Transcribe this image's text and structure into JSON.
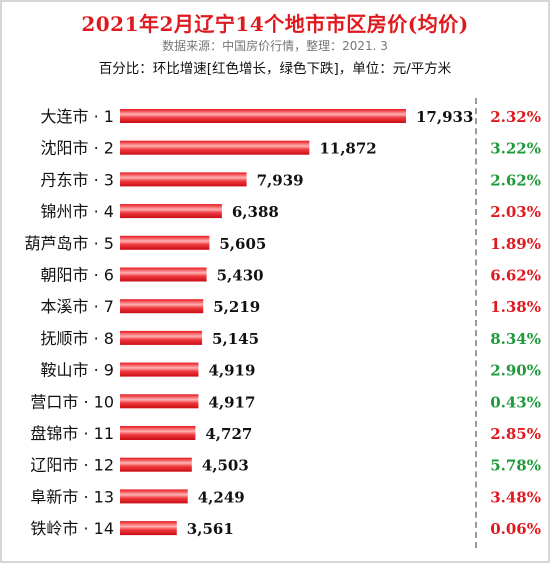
{
  "header": {
    "title": "2021年2月辽宁14个地市市区房价(均价)",
    "source": "数据来源：中国房价行情，整理：2021. 3",
    "note": "百分比：环比增速[红色增长，绿色下跌]，单位：元/平方米"
  },
  "colors": {
    "bar": "#e8141c",
    "bar_highlight": "#ffb3b3",
    "increase": "#e0191e",
    "decrease": "#1e9a3a"
  },
  "chart_data": {
    "type": "bar",
    "orientation": "horizontal",
    "categories": [
      "大连市 · 1",
      "沈阳市 · 2",
      "丹东市 · 3",
      "锦州市 · 4",
      "葫芦岛市 · 5",
      "朝阳市 · 6",
      "本溪市 · 7",
      "抚顺市 · 8",
      "鞍山市 · 9",
      "营口市 · 10",
      "盘锦市 · 11",
      "辽阳市 · 12",
      "阜新市 · 13",
      "铁岭市 · 14"
    ],
    "values": [
      17933,
      11872,
      7939,
      6388,
      5605,
      5430,
      5219,
      5145,
      4919,
      4917,
      4727,
      4503,
      4249,
      3561
    ],
    "value_labels": [
      "17,933",
      "11,872",
      "7,939",
      "6,388",
      "5,605",
      "5,430",
      "5,219",
      "5,145",
      "4,919",
      "4,917",
      "4,727",
      "4,503",
      "4,249",
      "3,561"
    ],
    "pct_labels": [
      "2.32%",
      "3.22%",
      "2.62%",
      "2.03%",
      "1.89%",
      "6.62%",
      "1.38%",
      "8.34%",
      "2.90%",
      "0.43%",
      "2.85%",
      "5.78%",
      "3.48%",
      "0.06%"
    ],
    "pct_direction": [
      "up",
      "down",
      "down",
      "up",
      "up",
      "up",
      "up",
      "down",
      "down",
      "down",
      "up",
      "down",
      "up",
      "up"
    ],
    "xlim": [
      0,
      17933
    ],
    "grid": false,
    "legend": "none"
  }
}
